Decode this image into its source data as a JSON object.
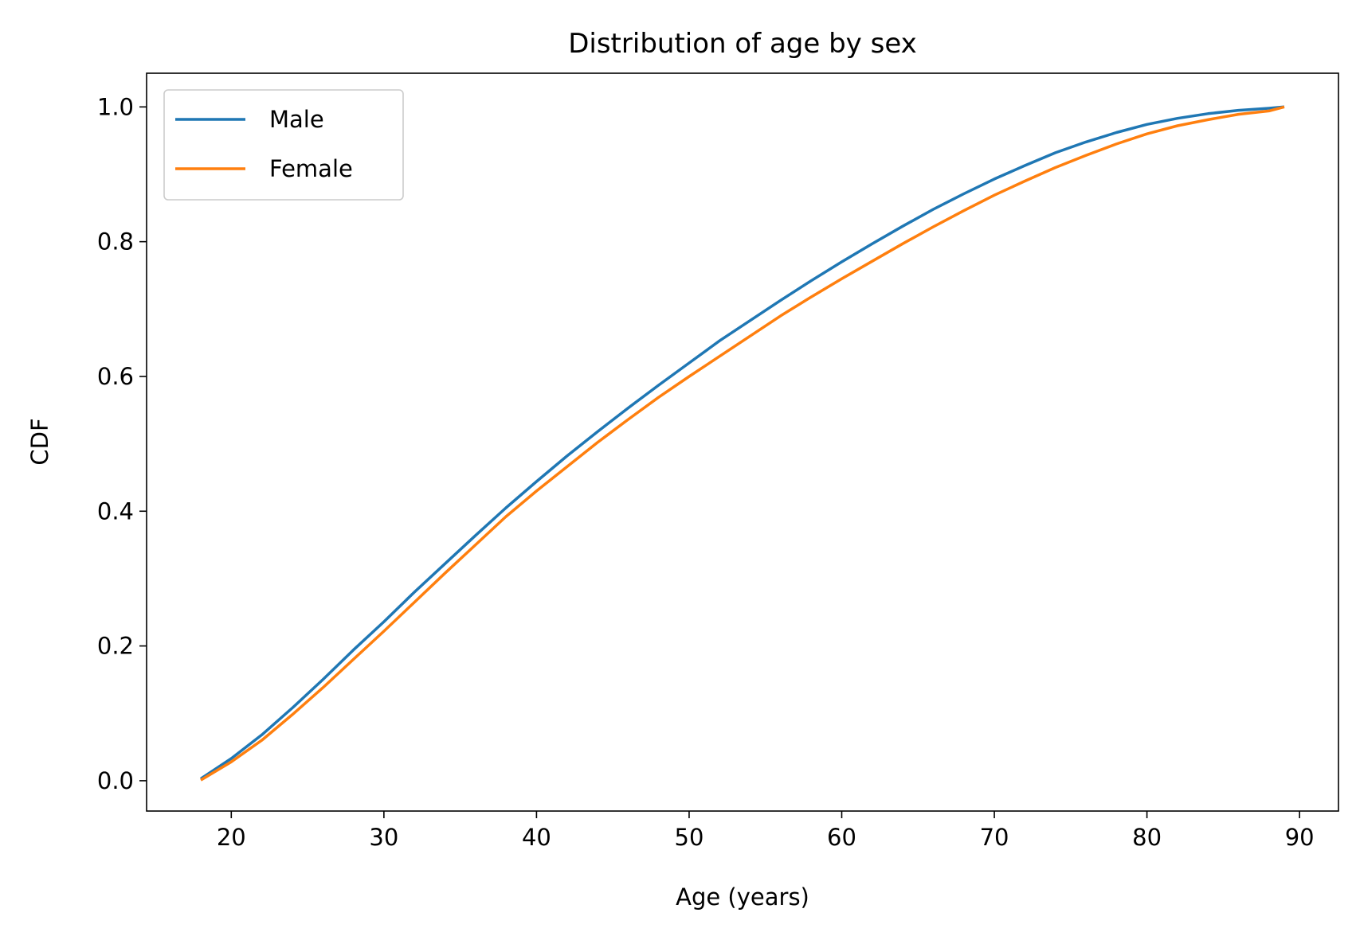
{
  "chart_data": {
    "type": "line",
    "title": "Distribution of age by sex",
    "xlabel": "Age (years)",
    "ylabel": "CDF",
    "xlim": [
      14.45,
      92.55
    ],
    "ylim": [
      -0.045,
      1.05
    ],
    "xticks": [
      20,
      30,
      40,
      50,
      60,
      70,
      80,
      90
    ],
    "yticks": [
      0.0,
      0.2,
      0.4,
      0.6,
      0.8,
      1.0
    ],
    "xtick_labels": [
      "20",
      "30",
      "40",
      "50",
      "60",
      "70",
      "80",
      "90"
    ],
    "ytick_labels": [
      "0.0",
      "0.2",
      "0.4",
      "0.6",
      "0.8",
      "1.0"
    ],
    "grid": false,
    "legend_position": "upper-left",
    "series": [
      {
        "name": "Male",
        "color": "#1f77b4",
        "x": [
          18,
          20,
          22,
          24,
          26,
          28,
          30,
          32,
          34,
          36,
          38,
          40,
          42,
          44,
          46,
          48,
          50,
          52,
          54,
          56,
          58,
          60,
          62,
          64,
          66,
          68,
          70,
          72,
          74,
          76,
          78,
          80,
          82,
          84,
          86,
          88,
          89
        ],
        "y": [
          0.003,
          0.033,
          0.068,
          0.108,
          0.15,
          0.194,
          0.236,
          0.28,
          0.322,
          0.364,
          0.405,
          0.444,
          0.482,
          0.518,
          0.553,
          0.587,
          0.62,
          0.653,
          0.683,
          0.713,
          0.742,
          0.77,
          0.797,
          0.823,
          0.848,
          0.871,
          0.893,
          0.913,
          0.932,
          0.948,
          0.962,
          0.974,
          0.983,
          0.99,
          0.995,
          0.998,
          1.0
        ]
      },
      {
        "name": "Female",
        "color": "#ff7f0e",
        "x": [
          18,
          20,
          22,
          24,
          26,
          28,
          30,
          32,
          34,
          36,
          38,
          40,
          42,
          44,
          46,
          48,
          50,
          52,
          54,
          56,
          58,
          60,
          62,
          64,
          66,
          68,
          70,
          72,
          74,
          76,
          78,
          80,
          82,
          84,
          86,
          88,
          89
        ],
        "y": [
          0.001,
          0.028,
          0.06,
          0.098,
          0.138,
          0.18,
          0.222,
          0.265,
          0.308,
          0.35,
          0.392,
          0.43,
          0.466,
          0.502,
          0.536,
          0.569,
          0.6,
          0.63,
          0.66,
          0.69,
          0.718,
          0.745,
          0.771,
          0.797,
          0.822,
          0.846,
          0.869,
          0.89,
          0.91,
          0.928,
          0.945,
          0.96,
          0.972,
          0.981,
          0.989,
          0.994,
          1.0
        ]
      }
    ]
  }
}
